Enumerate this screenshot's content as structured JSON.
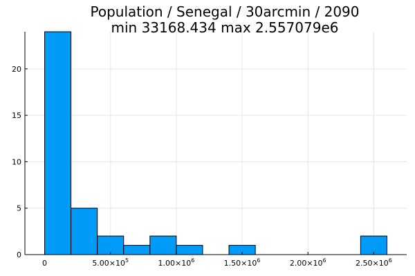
{
  "chart_data": {
    "type": "histogram",
    "title": "Population / Senegal / 30arcmin / 2090",
    "subtitle": "min 33168.434  max 2.557079e6",
    "xlabel": "",
    "ylabel": "",
    "bins": [
      {
        "start": 0,
        "end": 200000,
        "count": 24
      },
      {
        "start": 200000,
        "end": 400000,
        "count": 5
      },
      {
        "start": 400000,
        "end": 600000,
        "count": 2
      },
      {
        "start": 600000,
        "end": 800000,
        "count": 1
      },
      {
        "start": 800000,
        "end": 1000000,
        "count": 2
      },
      {
        "start": 1000000,
        "end": 1200000,
        "count": 1
      },
      {
        "start": 1400000,
        "end": 1600000,
        "count": 1
      },
      {
        "start": 2400000,
        "end": 2600000,
        "count": 2
      }
    ],
    "xlim": [
      -150000,
      2750000
    ],
    "ylim": [
      0,
      24
    ],
    "x_ticks": [
      {
        "value": 0,
        "label": "0",
        "base": "",
        "exp": ""
      },
      {
        "value": 500000,
        "label": "",
        "base": "5.00×10",
        "exp": "5"
      },
      {
        "value": 1000000,
        "label": "",
        "base": "1.00×10",
        "exp": "6"
      },
      {
        "value": 1500000,
        "label": "",
        "base": "1.50×10",
        "exp": "6"
      },
      {
        "value": 2000000,
        "label": "",
        "base": "2.00×10",
        "exp": "6"
      },
      {
        "value": 2500000,
        "label": "",
        "base": "2.50×10",
        "exp": "6"
      }
    ],
    "y_ticks": [
      {
        "value": 0,
        "label": "0"
      },
      {
        "value": 5,
        "label": "5"
      },
      {
        "value": 10,
        "label": "10"
      },
      {
        "value": 15,
        "label": "15"
      },
      {
        "value": 20,
        "label": "20"
      }
    ],
    "grid": true,
    "legend": false,
    "bar_color": "#009af9"
  }
}
